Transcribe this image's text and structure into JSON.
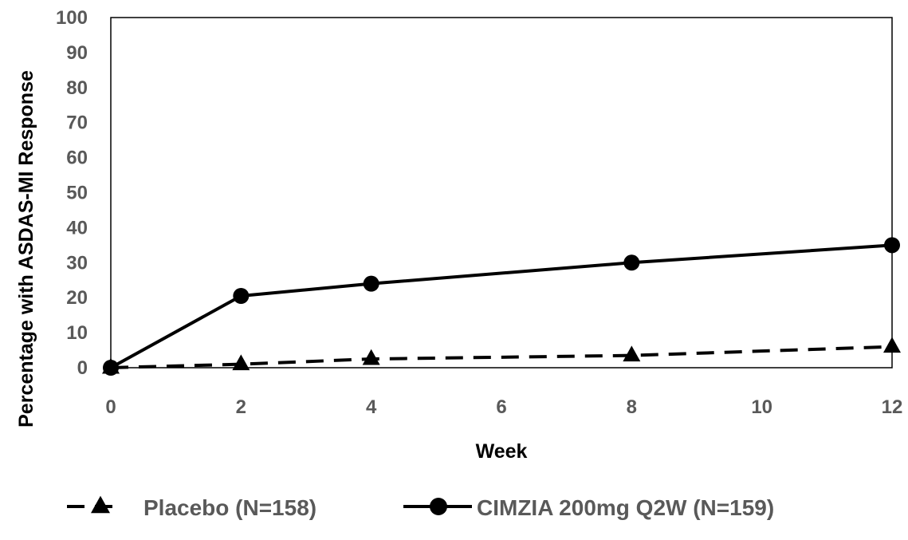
{
  "chart_data": {
    "type": "line",
    "title": "",
    "xlabel": "Week",
    "ylabel": "Percentage with ASDAS-MI Response",
    "xlim": [
      0,
      12
    ],
    "ylim": [
      0,
      100
    ],
    "x_ticks": [
      0,
      2,
      4,
      6,
      8,
      10,
      12
    ],
    "y_ticks": [
      0,
      10,
      20,
      30,
      40,
      50,
      60,
      70,
      80,
      90,
      100
    ],
    "grid": false,
    "legend_position": "bottom",
    "series": [
      {
        "name": "Placebo (N=158)",
        "x": [
          0,
          2,
          4,
          8,
          12
        ],
        "values": [
          0,
          1,
          2.5,
          3.5,
          6
        ],
        "line_style": "dashed",
        "marker": "triangle",
        "color": "#000000"
      },
      {
        "name": "CIMZIA 200mg Q2W (N=159)",
        "x": [
          0,
          2,
          4,
          8,
          12
        ],
        "values": [
          0,
          20.5,
          24,
          30,
          35
        ],
        "line_style": "solid",
        "marker": "circle",
        "color": "#000000"
      }
    ]
  },
  "colors": {
    "tick_text": "#595959",
    "series_line": "#000000",
    "plot_border": "#000000"
  }
}
